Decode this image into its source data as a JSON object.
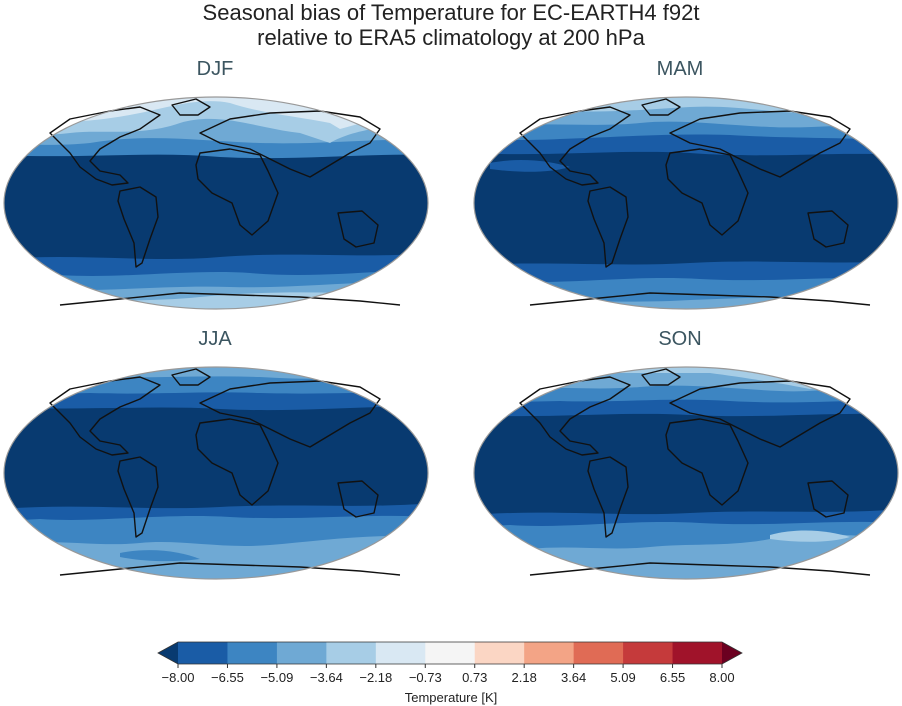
{
  "title": {
    "line1": "Seasonal bias of Temperature for EC-EARTH4 f92t",
    "line2": "relative to ERA5 climatology at 200 hPa"
  },
  "panels": [
    {
      "season": "DJF"
    },
    {
      "season": "MAM"
    },
    {
      "season": "JJA"
    },
    {
      "season": "SON"
    }
  ],
  "colorbar": {
    "label": "Temperature [K]",
    "ticks": [
      "−8.00",
      "−6.55",
      "−5.09",
      "−3.64",
      "−2.18",
      "−0.73",
      "0.73",
      "2.18",
      "3.64",
      "5.09",
      "6.55",
      "8.00"
    ],
    "colors": [
      "#083a70",
      "#1a5ca6",
      "#3d85c2",
      "#6fa9d4",
      "#a7cde6",
      "#d9e8f3",
      "#f5f5f5",
      "#fbd6c4",
      "#f3a486",
      "#e06b55",
      "#c53a3b",
      "#a0132a",
      "#6b0020"
    ]
  }
}
